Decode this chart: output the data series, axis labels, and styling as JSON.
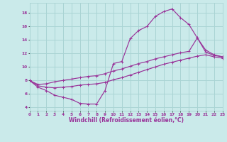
{
  "xlabel": "Windchill (Refroidissement éolien,°C)",
  "bg_color": "#caeaea",
  "grid_color": "#aad4d4",
  "line_color": "#993399",
  "xlim": [
    0,
    23
  ],
  "ylim": [
    3.5,
    19.5
  ],
  "xticks": [
    0,
    1,
    2,
    3,
    4,
    5,
    6,
    7,
    8,
    9,
    10,
    11,
    12,
    13,
    14,
    15,
    16,
    17,
    18,
    19,
    20,
    21,
    22,
    23
  ],
  "yticks": [
    4,
    6,
    8,
    10,
    12,
    14,
    16,
    18
  ],
  "line1_x": [
    0,
    1,
    2,
    3,
    4,
    5,
    6,
    7,
    8,
    9,
    10,
    11,
    12,
    13,
    14,
    15,
    16,
    17,
    18,
    19,
    20,
    21,
    22,
    23
  ],
  "line1_y": [
    8.0,
    7.0,
    6.5,
    5.8,
    5.5,
    5.2,
    4.6,
    4.5,
    4.5,
    6.5,
    10.5,
    10.8,
    14.2,
    15.4,
    16.0,
    17.5,
    18.2,
    18.6,
    17.3,
    16.3,
    14.3,
    12.2,
    11.7,
    11.5
  ],
  "line2_x": [
    0,
    1,
    2,
    3,
    4,
    5,
    6,
    7,
    8,
    9,
    10,
    11,
    12,
    13,
    14,
    15,
    16,
    17,
    18,
    19,
    20,
    21,
    22,
    23
  ],
  "line2_y": [
    8.0,
    7.4,
    7.5,
    7.8,
    8.0,
    8.2,
    8.4,
    8.6,
    8.7,
    9.0,
    9.4,
    9.7,
    10.1,
    10.5,
    10.8,
    11.2,
    11.5,
    11.8,
    12.1,
    12.3,
    14.3,
    12.5,
    11.8,
    11.5
  ],
  "line3_x": [
    0,
    1,
    2,
    3,
    4,
    5,
    6,
    7,
    8,
    9,
    10,
    11,
    12,
    13,
    14,
    15,
    16,
    17,
    18,
    19,
    20,
    21,
    22,
    23
  ],
  "line3_y": [
    8.0,
    7.2,
    7.0,
    6.9,
    7.0,
    7.1,
    7.3,
    7.4,
    7.5,
    7.7,
    8.1,
    8.4,
    8.8,
    9.2,
    9.6,
    10.0,
    10.4,
    10.7,
    11.0,
    11.3,
    11.6,
    11.8,
    11.5,
    11.3
  ]
}
